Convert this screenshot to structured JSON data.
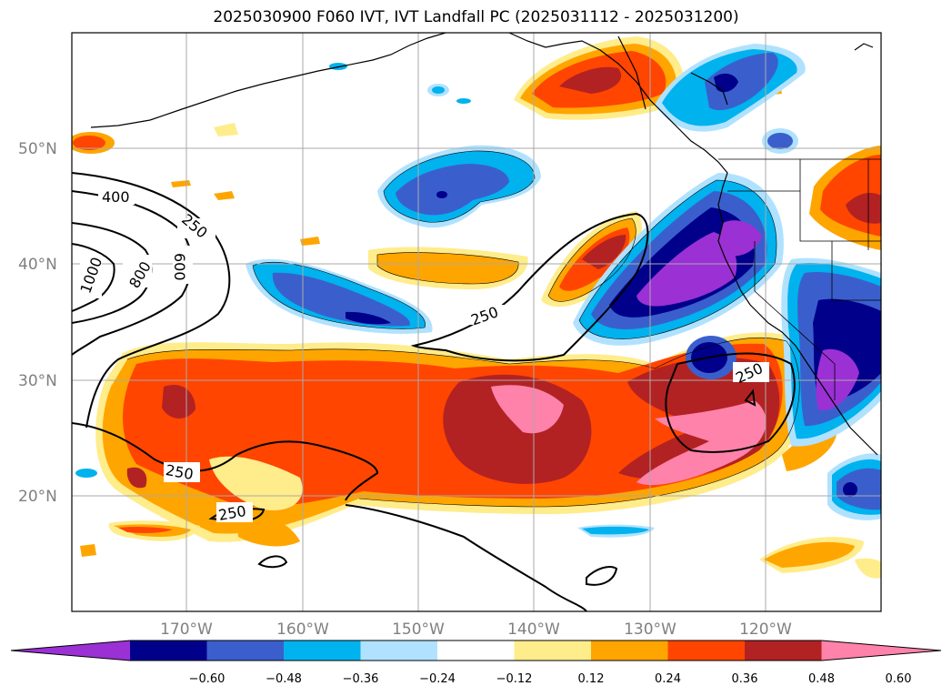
{
  "title": "2025030900 F060 IVT, IVT Landfall PC (2025031112 - 2025031200)",
  "map": {
    "lat_labels": [
      "50°N",
      "40°N",
      "30°N",
      "20°N"
    ],
    "lon_labels": [
      "170°W",
      "160°W",
      "150°W",
      "140°W",
      "130°W",
      "120°W"
    ]
  },
  "ivt_contours": {
    "labels": [
      "400",
      "250",
      "600",
      "800",
      "1000",
      "250",
      "250",
      "250",
      "250"
    ]
  },
  "colorbar": {
    "ticks": [
      "−0.60",
      "−0.48",
      "−0.36",
      "−0.24",
      "−0.12",
      "0.12",
      "0.24",
      "0.36",
      "0.48",
      "0.60"
    ],
    "colors": [
      "#9b30d5",
      "#00008b",
      "#3a5fcd",
      "#00b2ee",
      "#b0e2ff",
      "#ffffff",
      "#ffec8b",
      "#ffa500",
      "#ff4500",
      "#b22222",
      "#ff82ab"
    ]
  },
  "colors": {
    "coast": "#000000",
    "grid": "#aaaaaa",
    "contour": "#000000"
  }
}
